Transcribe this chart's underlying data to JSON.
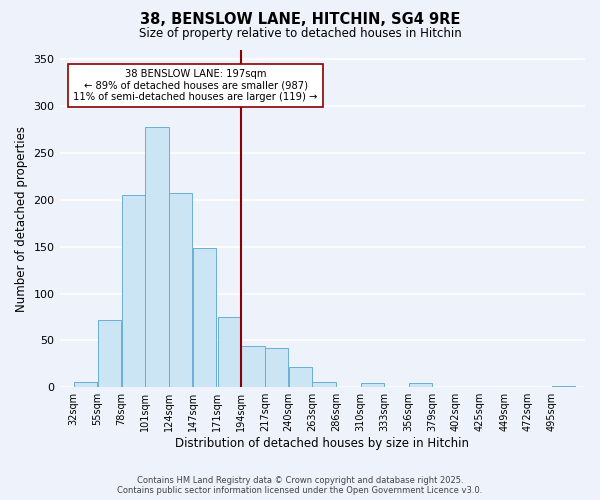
{
  "title": "38, BENSLOW LANE, HITCHIN, SG4 9RE",
  "subtitle": "Size of property relative to detached houses in Hitchin",
  "xlabel": "Distribution of detached houses by size in Hitchin",
  "ylabel": "Number of detached properties",
  "bin_labels": [
    "32sqm",
    "55sqm",
    "78sqm",
    "101sqm",
    "124sqm",
    "147sqm",
    "171sqm",
    "194sqm",
    "217sqm",
    "240sqm",
    "263sqm",
    "286sqm",
    "310sqm",
    "333sqm",
    "356sqm",
    "379sqm",
    "402sqm",
    "425sqm",
    "449sqm",
    "472sqm",
    "495sqm"
  ],
  "bin_edges": [
    32,
    55,
    78,
    101,
    124,
    147,
    171,
    194,
    217,
    240,
    263,
    286,
    310,
    333,
    356,
    379,
    402,
    425,
    449,
    472,
    495
  ],
  "bar_heights": [
    6,
    72,
    205,
    278,
    207,
    149,
    75,
    44,
    42,
    22,
    6,
    0,
    5,
    0,
    5,
    0,
    0,
    0,
    0,
    0,
    1
  ],
  "bar_color": "#cce5f5",
  "bar_edge_color": "#6aafd6",
  "property_line_x": 194,
  "property_line_color": "#8b0000",
  "annotation_line1": "38 BENSLOW LANE: 197sqm",
  "annotation_line2": "← 89% of detached houses are smaller (987)",
  "annotation_line3": "11% of semi-detached houses are larger (119) →",
  "annotation_box_edge_color": "#8b0000",
  "annotation_box_face_color": "#ffffff",
  "ylim": [
    0,
    360
  ],
  "yticks": [
    0,
    50,
    100,
    150,
    200,
    250,
    300,
    350
  ],
  "background_color": "#eef2fb",
  "grid_color": "#ffffff",
  "footer_line1": "Contains HM Land Registry data © Crown copyright and database right 2025.",
  "footer_line2": "Contains public sector information licensed under the Open Government Licence v3.0."
}
